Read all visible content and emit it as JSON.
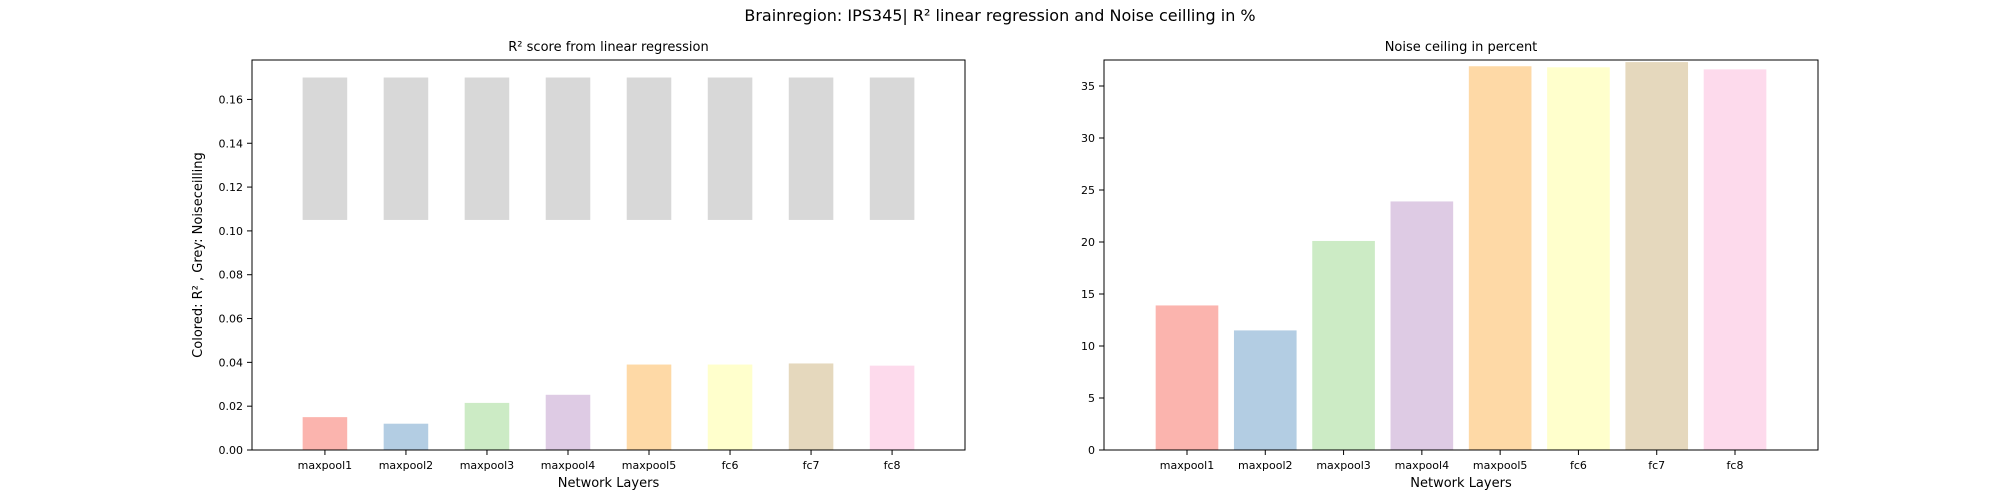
{
  "suptitle": "Brainregion: IPS345| R² linear regression and Noise ceilling in %",
  "chart_data": [
    {
      "type": "bar",
      "title": "R² score from linear regression",
      "xlabel": "Network Layers",
      "ylabel": "Colored: R² , Grey: Noiseceilling",
      "categories": [
        "maxpool1",
        "maxpool2",
        "maxpool3",
        "maxpool4",
        "maxpool5",
        "fc6",
        "fc7",
        "fc8"
      ],
      "ylim": [
        0,
        0.178
      ],
      "yticks": [
        0.0,
        0.02,
        0.04,
        0.06,
        0.08,
        0.1,
        0.12,
        0.14,
        0.16
      ],
      "ytick_labels": [
        "0.00",
        "0.02",
        "0.04",
        "0.06",
        "0.08",
        "0.10",
        "0.12",
        "0.14",
        "0.16"
      ],
      "series": [
        {
          "values": [
            0.015,
            0.012,
            0.0215,
            0.0252,
            0.039,
            0.039,
            0.0395,
            0.0385
          ]
        },
        {
          "values_low": [
            0.105,
            0.105,
            0.105,
            0.105,
            0.105,
            0.105,
            0.105,
            0.105
          ],
          "values_high": [
            0.17,
            0.17,
            0.17,
            0.17,
            0.17,
            0.17,
            0.17,
            0.17
          ],
          "color": "#d8d8d8"
        }
      ],
      "colors": [
        "#fbb4ae",
        "#b3cde3",
        "#ccebc5",
        "#decbe4",
        "#fed9a6",
        "#ffffcc",
        "#e5d8bd",
        "#fddaec"
      ]
    },
    {
      "type": "bar",
      "title": "Noise ceiling in percent",
      "xlabel": "Network Layers",
      "ylabel": "",
      "categories": [
        "maxpool1",
        "maxpool2",
        "maxpool3",
        "maxpool4",
        "maxpool5",
        "fc6",
        "fc7",
        "fc8"
      ],
      "ylim": [
        0,
        37.5
      ],
      "yticks": [
        0,
        5,
        10,
        15,
        20,
        25,
        30,
        35
      ],
      "ytick_labels": [
        "0",
        "5",
        "10",
        "15",
        "20",
        "25",
        "30",
        "35"
      ],
      "series": [
        {
          "values": [
            13.9,
            11.5,
            20.1,
            23.9,
            36.9,
            36.8,
            37.3,
            36.6
          ]
        }
      ],
      "colors": [
        "#fbb4ae",
        "#b3cde3",
        "#ccebc5",
        "#decbe4",
        "#fed9a6",
        "#ffffcc",
        "#e5d8bd",
        "#fddaec"
      ]
    }
  ]
}
